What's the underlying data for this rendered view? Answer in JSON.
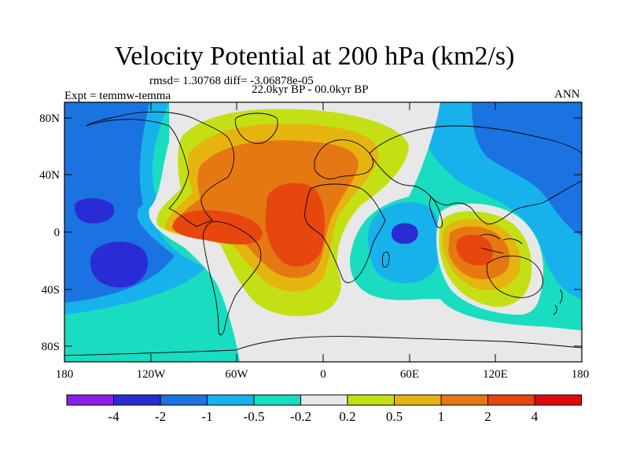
{
  "title": "Velocity Potential at 200 hPa (km2/s)",
  "stats": "rmsd= 1.30768 diff= -3.06878e-05",
  "experiment": "Expt = temmw-temma",
  "period": "22.0kyr BP - 00.0kyr BP",
  "season": "ANN",
  "map": {
    "projection": "cylindrical equidistant",
    "lat_ticks": [
      "80N",
      "40N",
      "0",
      "40S",
      "80S"
    ],
    "lon_ticks": [
      "180",
      "120W",
      "60W",
      "0",
      "60E",
      "120E",
      "180"
    ]
  },
  "colorbar": {
    "labels": [
      "-4",
      "-2",
      "-1",
      "-0.5",
      "-0.2",
      "0.2",
      "0.5",
      "1",
      "2",
      "4"
    ],
    "colors": [
      "#8a1fe6",
      "#2b2bd6",
      "#1a73e0",
      "#17b2ec",
      "#19dcc0",
      "#e8e8e8",
      "#c4e014",
      "#e6b40f",
      "#e67814",
      "#e8460f",
      "#e00a0a"
    ]
  }
}
